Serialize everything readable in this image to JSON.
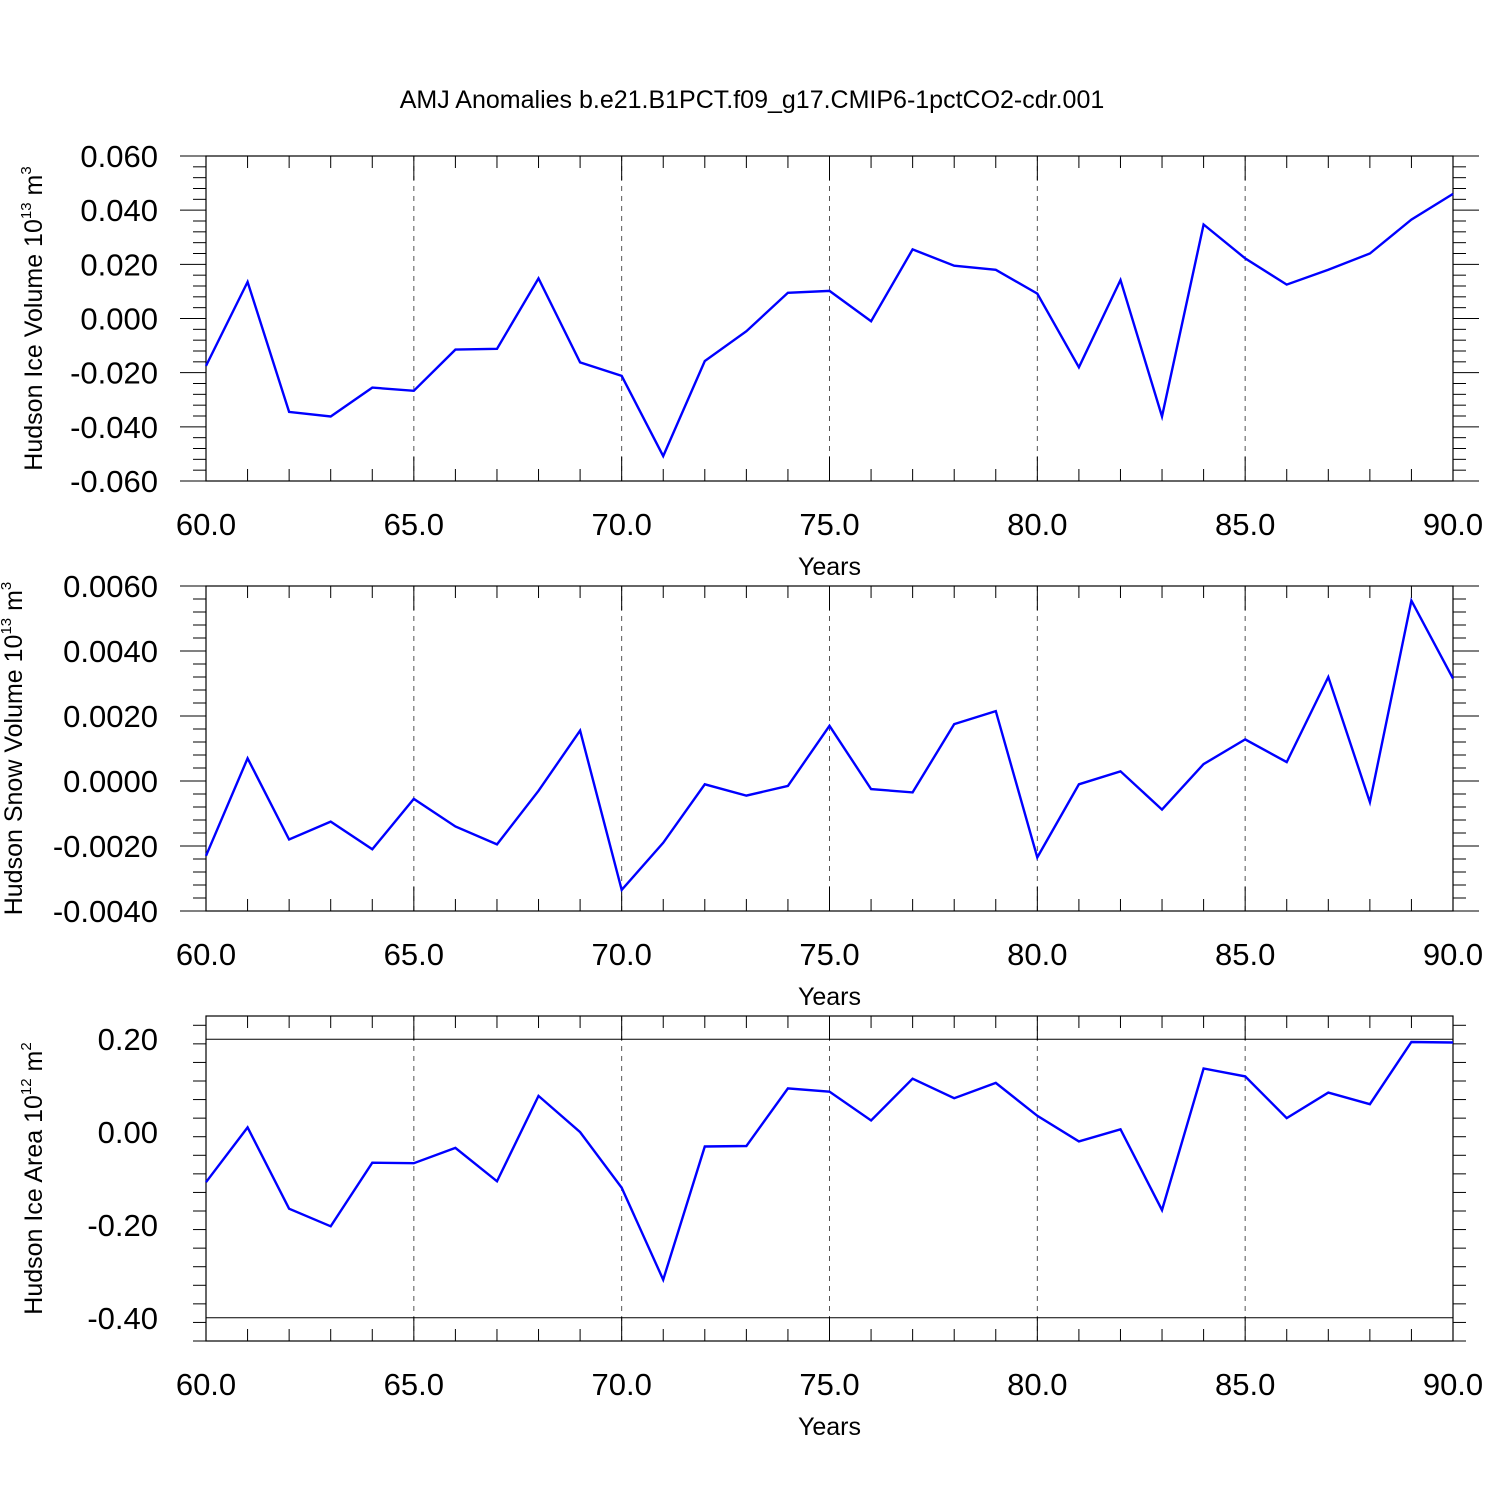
{
  "title": "AMJ Anomalies b.e21.B1PCT.f09_g17.CMIP6-1pctCO2-cdr.001",
  "chart_data": [
    {
      "type": "line",
      "xlabel": "Years",
      "ylabel": {
        "text": "Hudson Ice Volume 10",
        "exp": "13",
        "unit": "m",
        "unit_exp": "3"
      },
      "xlim": [
        60,
        90
      ],
      "ylim": [
        -0.06,
        0.06
      ],
      "x_ticks": [
        "60.0",
        "65.0",
        "70.0",
        "75.0",
        "80.0",
        "85.0",
        "90.0"
      ],
      "y_ticks": [
        "-0.060",
        "-0.040",
        "-0.020",
        "0.000",
        "0.020",
        "0.040",
        "0.060"
      ],
      "y_tick_values": [
        -0.06,
        -0.04,
        -0.02,
        0.0,
        0.02,
        0.04,
        0.06
      ],
      "line_color": "#0000ff",
      "x": [
        60,
        61,
        62,
        63,
        64,
        65,
        66,
        67,
        68,
        69,
        70,
        71,
        72,
        73,
        74,
        75,
        76,
        77,
        78,
        79,
        80,
        81,
        82,
        83,
        84,
        85,
        86,
        87,
        88,
        89,
        90
      ],
      "values": [
        -0.0175,
        0.0135,
        -0.0345,
        -0.0362,
        -0.0255,
        -0.0267,
        -0.0115,
        -0.0112,
        0.0148,
        -0.0162,
        -0.0212,
        -0.0508,
        -0.0157,
        -0.0047,
        0.0095,
        0.0102,
        -0.001,
        0.0255,
        0.0195,
        0.018,
        0.0092,
        -0.018,
        0.0142,
        -0.0362,
        0.0347,
        0.0222,
        0.0125,
        0.018,
        0.024,
        0.0365,
        0.046
      ]
    },
    {
      "type": "line",
      "xlabel": "Years",
      "ylabel": {
        "text": "Hudson Snow Volume 10",
        "exp": "13",
        "unit": "m",
        "unit_exp": "3"
      },
      "xlim": [
        60,
        90
      ],
      "ylim": [
        -0.004,
        0.006
      ],
      "x_ticks": [
        "60.0",
        "65.0",
        "70.0",
        "75.0",
        "80.0",
        "85.0",
        "90.0"
      ],
      "y_ticks": [
        "-0.0040",
        "-0.0020",
        "0.0000",
        "0.0020",
        "0.0040",
        "0.0060"
      ],
      "y_tick_values": [
        -0.004,
        -0.002,
        0.0,
        0.002,
        0.004,
        0.006
      ],
      "line_color": "#0000ff",
      "x": [
        60,
        61,
        62,
        63,
        64,
        65,
        66,
        67,
        68,
        69,
        70,
        71,
        72,
        73,
        74,
        75,
        76,
        77,
        78,
        79,
        80,
        81,
        82,
        83,
        84,
        85,
        86,
        87,
        88,
        89,
        90
      ],
      "values": [
        -0.0023,
        0.0007,
        -0.0018,
        -0.00125,
        -0.0021,
        -0.00055,
        -0.0014,
        -0.00195,
        -0.0003,
        0.00155,
        -0.00335,
        -0.0019,
        -0.0001,
        -0.00045,
        -0.00015,
        0.0017,
        -0.00025,
        -0.00035,
        0.00175,
        0.00215,
        -0.00235,
        -0.0001,
        0.0003,
        -0.00088,
        0.00052,
        0.00128,
        0.00058,
        0.0032,
        -0.00065,
        0.00555,
        0.00315
      ]
    },
    {
      "type": "line",
      "xlabel": "Years",
      "ylabel": {
        "text": "Hudson Ice Area 10",
        "exp": "12",
        "unit": "m",
        "unit_exp": "2"
      },
      "xlim": [
        60,
        90
      ],
      "ylim": [
        -0.45,
        0.25
      ],
      "x_ticks": [
        "60.0",
        "65.0",
        "70.0",
        "75.0",
        "80.0",
        "85.0",
        "90.0"
      ],
      "y_ticks": [
        "-0.40",
        "-0.20",
        "0.00",
        "0.20"
      ],
      "y_tick_values": [
        -0.4,
        -0.2,
        0.0,
        0.2
      ],
      "line_color": "#0000ff",
      "x": [
        60,
        61,
        62,
        63,
        64,
        65,
        66,
        67,
        68,
        69,
        70,
        71,
        72,
        73,
        74,
        75,
        76,
        77,
        78,
        79,
        80,
        81,
        82,
        83,
        84,
        85,
        86,
        87,
        88,
        89,
        90
      ],
      "values": [
        -0.108,
        0.01,
        -0.165,
        -0.203,
        -0.066,
        -0.067,
        -0.034,
        -0.106,
        0.078,
        0.0,
        -0.12,
        -0.318,
        -0.031,
        -0.03,
        0.094,
        0.087,
        0.025,
        0.115,
        0.073,
        0.106,
        0.035,
        -0.02,
        0.006,
        -0.168,
        0.137,
        0.12,
        0.03,
        0.085,
        0.06,
        0.194,
        0.193
      ]
    }
  ]
}
